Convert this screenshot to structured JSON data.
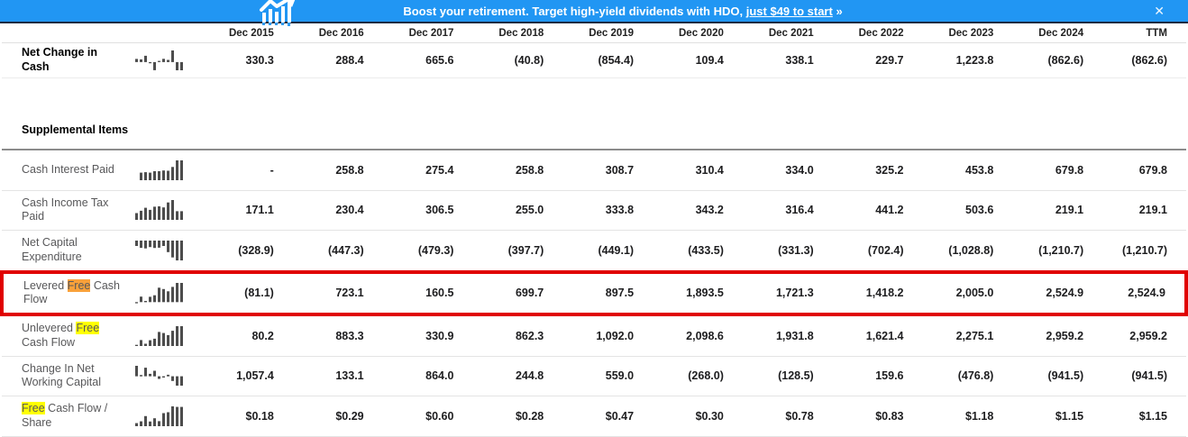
{
  "banner": {
    "text": "Boost your retirement. Target high-yield dividends with HDO,",
    "link_text": "just $49 to start",
    "suffix": "»",
    "close_icon": "✕",
    "bg_color": "#2196f3"
  },
  "colors": {
    "highlight_box": "#e00000",
    "match_active": "#f9a13a",
    "match_other": "#ffff00",
    "banner_blue": "#2196f3"
  },
  "table": {
    "columns": [
      "Dec 2015",
      "Dec 2016",
      "Dec 2017",
      "Dec 2018",
      "Dec 2019",
      "Dec 2020",
      "Dec 2021",
      "Dec 2022",
      "Dec 2023",
      "Dec 2024",
      "TTM"
    ],
    "rows": [
      {
        "type": "first",
        "bold": true,
        "label_parts": [
          {
            "t": "Net Change in Cash"
          }
        ],
        "icon": "sparkline-bars-icon",
        "values": [
          "330.3",
          "288.4",
          "665.6",
          "(40.8)",
          "(854.4)",
          "109.4",
          "338.1",
          "229.7",
          "1,223.8",
          "(862.6)",
          "(862.6)"
        ]
      },
      {
        "type": "spacer"
      },
      {
        "type": "section",
        "label": "Supplemental Items"
      },
      {
        "type": "data",
        "label_parts": [
          {
            "t": "Cash Interest Paid"
          }
        ],
        "icon": "sparkline-bars-icon",
        "values": [
          "-",
          "258.8",
          "275.4",
          "258.8",
          "308.7",
          "310.4",
          "334.0",
          "325.2",
          "453.8",
          "679.8",
          "679.8"
        ]
      },
      {
        "type": "data",
        "label_parts": [
          {
            "t": "Cash Income Tax Paid"
          }
        ],
        "icon": "sparkline-bars-icon",
        "values": [
          "171.1",
          "230.4",
          "306.5",
          "255.0",
          "333.8",
          "343.2",
          "316.4",
          "441.2",
          "503.6",
          "219.1",
          "219.1"
        ]
      },
      {
        "type": "data",
        "label_parts": [
          {
            "t": "Net Capital Expenditure"
          }
        ],
        "icon": "sparkline-bars-icon",
        "values": [
          "(328.9)",
          "(447.3)",
          "(479.3)",
          "(397.7)",
          "(449.1)",
          "(433.5)",
          "(331.3)",
          "(702.4)",
          "(1,028.8)",
          "(1,210.7)",
          "(1,210.7)"
        ]
      },
      {
        "type": "data",
        "highlight_box": true,
        "label_parts": [
          {
            "t": "Levered "
          },
          {
            "t": "Free",
            "h": "orange"
          },
          {
            "t": " Cash Flow"
          }
        ],
        "icon": "sparkline-bars-icon",
        "values": [
          "(81.1)",
          "723.1",
          "160.5",
          "699.7",
          "897.5",
          "1,893.5",
          "1,721.3",
          "1,418.2",
          "2,005.0",
          "2,524.9",
          "2,524.9"
        ]
      },
      {
        "type": "data",
        "label_parts": [
          {
            "t": "Unlevered "
          },
          {
            "t": "Free",
            "h": "yellow"
          },
          {
            "t": " Cash Flow"
          }
        ],
        "icon": "sparkline-bars-icon",
        "values": [
          "80.2",
          "883.3",
          "330.9",
          "862.3",
          "1,092.0",
          "2,098.6",
          "1,931.8",
          "1,621.4",
          "2,275.1",
          "2,959.2",
          "2,959.2"
        ]
      },
      {
        "type": "data",
        "label_parts": [
          {
            "t": "Change In Net Working Capital"
          }
        ],
        "icon": "sparkline-bars-icon",
        "values": [
          "1,057.4",
          "133.1",
          "864.0",
          "244.8",
          "559.0",
          "(268.0)",
          "(128.5)",
          "159.6",
          "(476.8)",
          "(941.5)",
          "(941.5)"
        ]
      },
      {
        "type": "data",
        "label_parts": [
          {
            "t": "Free",
            "h": "yellow"
          },
          {
            "t": " Cash Flow / Share"
          }
        ],
        "icon": "sparkline-bars-icon",
        "values": [
          "$0.18",
          "$0.29",
          "$0.60",
          "$0.28",
          "$0.47",
          "$0.30",
          "$0.78",
          "$0.83",
          "$1.18",
          "$1.15",
          "$1.15"
        ]
      }
    ]
  }
}
